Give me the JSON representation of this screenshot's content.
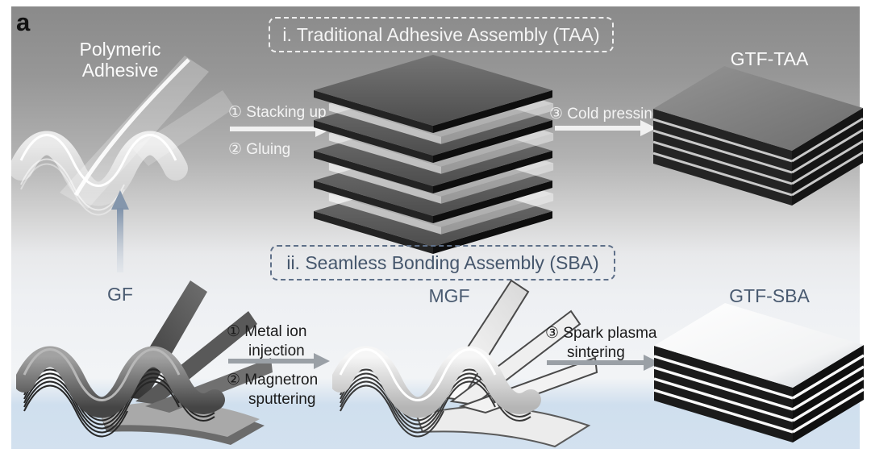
{
  "figure": {
    "panel_label": "a",
    "colors": {
      "background_top_gray": "#8a8a8a",
      "bottom_band_blue": "#cfdfee",
      "light_text": "#f4f4f4",
      "dark_text": "#1b1b1b",
      "slate_text": "#4a5b71",
      "taa_box_border": "#fafafa",
      "sba_box_border": "#5f7089",
      "white_arrow": "#f1f1f1",
      "gray_arrow": "#9aa0a6",
      "up_arrow_blue_gray": "#8496ac"
    },
    "taa": {
      "title": "i. Traditional Adhesive Assembly (TAA)",
      "adhesive_label": "Polymeric\nAdhesive",
      "step1": "① Stacking up",
      "step2": "② Gluing",
      "step3": "③ Cold pressing",
      "product_label": "GTF-TAA"
    },
    "sba": {
      "title": "ii. Seamless Bonding Assembly (SBA)",
      "gf_label": "GF",
      "mgf_label": "MGF",
      "step1": "① Metal ion\ninjection",
      "step2": "② Magnetron\nsputtering",
      "step3": "③ Spark plasma\nsintering",
      "product_label": "GTF-SBA"
    }
  }
}
